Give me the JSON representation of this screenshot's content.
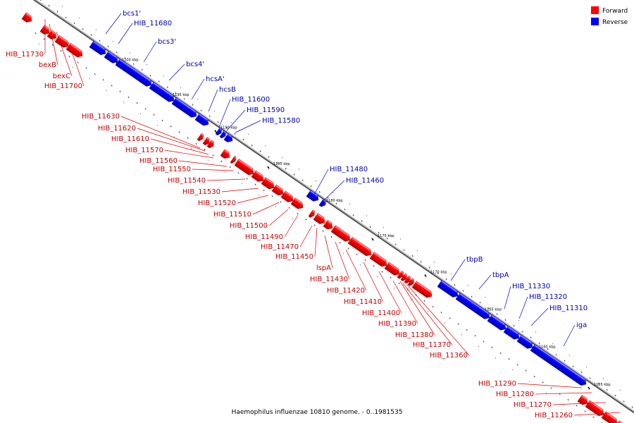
{
  "caption": "Haemophilus influenzae 10810 genome. - 0..1981535",
  "legend": [
    {
      "label": "Forward",
      "color": "#ff0000"
    },
    {
      "label": "Reverse",
      "color": "#0000ff"
    }
  ],
  "colors": {
    "forward": "#ff0000",
    "reverse": "#0000ff",
    "forward_label": "#c80000",
    "reverse_label": "#0000b4",
    "backbone": "#808080"
  },
  "ticks": [
    "1200 kbp",
    "1195 kbp",
    "1190 kbp",
    "1185 kbp",
    "1180 kbp",
    "1175 kbp",
    "1170 kbp",
    "1165 kbp",
    "1160 kbp",
    "1155 kbp"
  ],
  "forward_genes": [
    "HIB_11730",
    "bexB",
    "bexC",
    "HIB_11700",
    "HIB_11630",
    "HIB_11620",
    "HIB_11610",
    "HIB_11570",
    "HIB_11560",
    "HIB_11550",
    "HIB_11540",
    "HIB_11530",
    "HIB_11520",
    "HIB_11510",
    "HIB_11500",
    "HIB_11490",
    "HIB_11470",
    "HIB_11450",
    "lspA",
    "HIB_11430",
    "HIB_11420",
    "HIB_11410",
    "HIB_11400",
    "HIB_11390",
    "HIB_11380",
    "HIB_11370",
    "HIB_11360",
    "HIB_11290",
    "HIB_11280",
    "HIB_11270",
    "HIB_11260"
  ],
  "reverse_genes": [
    "bcs1'",
    "HIB_11680",
    "bcs3'",
    "bcs4'",
    "hcsA'",
    "hcsB",
    "HIB_11600",
    "HIB_11590",
    "HIB_11580",
    "HIB_11480",
    "HIB_11460",
    "tbpB",
    "tbpA",
    "HIB_11330",
    "HIB_11320",
    "HIB_11310",
    "iga"
  ]
}
